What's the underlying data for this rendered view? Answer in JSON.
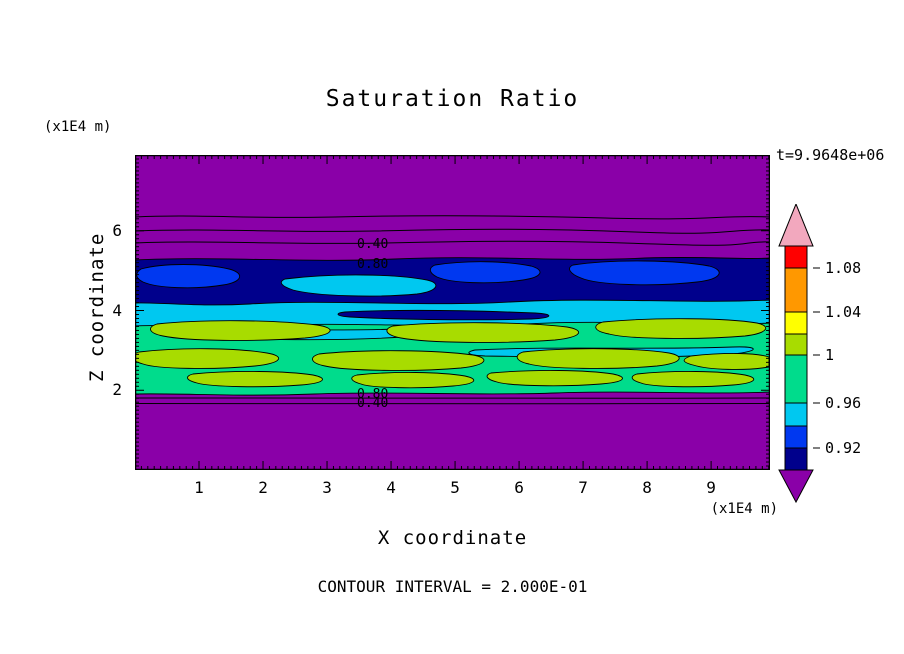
{
  "palette": {
    "purple": "#8A00A8",
    "navy": "#00008C",
    "blue": "#0038F0",
    "cyan": "#00C8F0",
    "spring_green": "#00DC8C",
    "chartreuse": "#A8DC00",
    "yellow": "#FFFF00",
    "orange": "#FF9800",
    "red": "#FF0000",
    "pink": "#F2A8BE",
    "line": "#000000",
    "background": "#FFFFFF"
  },
  "chart_data": {
    "type": "heatmap",
    "subtype": "filled-contour",
    "title": "Saturation Ratio",
    "time_label": "t=9.9648e+06",
    "xlabel": "X coordinate",
    "ylabel": "Z coordinate",
    "x_unit_label": "(x1E4 m)",
    "y_unit_label": "(x1E4 m)",
    "footer": "CONTOUR INTERVAL = 2.000E-01",
    "contour_interval": 0.2,
    "xlim": [
      0,
      9.92
    ],
    "ylim": [
      0,
      7.9
    ],
    "x_major_ticks": [
      1,
      2,
      3,
      4,
      5,
      6,
      7,
      8,
      9
    ],
    "y_major_ticks": [
      2,
      4,
      6
    ],
    "minor_tick_step": 0.1,
    "grid": false,
    "legend_position": "right-colorbar",
    "contour_labels": {
      "upper": [
        "0.40",
        "0.80"
      ],
      "lower": [
        "0.80",
        "0.40"
      ]
    },
    "colorbar": {
      "orientation": "vertical",
      "tick_labels": [
        "1.08",
        "1.04",
        "1",
        "0.96",
        "0.92"
      ],
      "segments": [
        {
          "color": "pink",
          "arrow": "up"
        },
        {
          "color": "red",
          "label_below": "1.08"
        },
        {
          "color": "orange",
          "label_below": "1.04"
        },
        {
          "color": "yellow"
        },
        {
          "color": "chartreuse",
          "label_below": "1"
        },
        {
          "color": "spring_green",
          "label_below": "0.96"
        },
        {
          "color": "cyan"
        },
        {
          "color": "blue",
          "label_below": "0.92"
        },
        {
          "color": "navy"
        },
        {
          "color": "purple",
          "arrow": "down"
        }
      ]
    },
    "field_summary": {
      "description": "Horizontally stratified saturation-ratio field; saturated layer between z~2 and z~5 (x1E4 m), unsaturated purple background above and below.",
      "bands_top_to_bottom": [
        {
          "z_range": [
            5.4,
            7.9
          ],
          "value": "< 0.2",
          "color_name": "purple"
        },
        {
          "z_range": [
            4.1,
            5.4
          ],
          "value": "~0.90-0.96",
          "color_name": "navy/blue streaks with cyan"
        },
        {
          "z_range": [
            3.8,
            4.3
          ],
          "value": "~0.96-0.98",
          "color_name": "cyan"
        },
        {
          "z_range": [
            2.0,
            4.1
          ],
          "value": "~0.98-1.02 with 1.02-1.06 patches",
          "color_name": "spring-green with chartreuse blobs"
        },
        {
          "z_range": [
            0.0,
            2.0
          ],
          "value": "< 0.2",
          "color_name": "purple"
        }
      ]
    }
  }
}
